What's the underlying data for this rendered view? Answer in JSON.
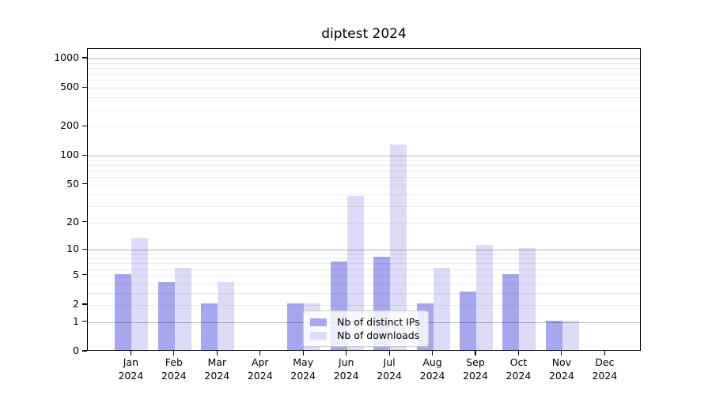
{
  "title": "diptest 2024",
  "chart_data": {
    "type": "bar",
    "title": "diptest 2024",
    "categories": [
      "Jan",
      "Feb",
      "Mar",
      "Apr",
      "May",
      "Jun",
      "Jul",
      "Aug",
      "Sep",
      "Oct",
      "Nov",
      "Dec"
    ],
    "x_tick_line2": "2024",
    "series": [
      {
        "name": "Nb of distinct IPs",
        "color": "#a7a7ef",
        "values": [
          5,
          4,
          2,
          0,
          2,
          7,
          8,
          2,
          3,
          5,
          1,
          0
        ]
      },
      {
        "name": "Nb of downloads",
        "color": "#dcdcf8",
        "values": [
          13,
          6,
          4,
          0,
          2,
          37,
          125,
          6,
          11,
          10,
          1,
          0
        ]
      }
    ],
    "y_axis": {
      "scale": "log1p",
      "tick_labels": [
        0,
        1,
        2,
        5,
        10,
        20,
        50,
        100,
        200,
        500,
        1000
      ],
      "major_gridlines": [
        1,
        10,
        100,
        1000
      ],
      "minor_gridlines": [
        2,
        3,
        4,
        5,
        6,
        7,
        8,
        9,
        20,
        30,
        40,
        50,
        60,
        70,
        80,
        90,
        200,
        300,
        400,
        500,
        600,
        700,
        800,
        900
      ],
      "range": [
        0,
        1250
      ]
    },
    "legend": {
      "position": "lower-center"
    },
    "grid": true
  },
  "colors": {
    "background": "#ffffff",
    "bar_distinct_ips": "#a7a7ef",
    "bar_downloads": "#dcdcf8",
    "major_grid": "#b3b3b3",
    "minor_grid": "#ededed",
    "axis": "#000000",
    "legend_border": "#cccccc"
  }
}
